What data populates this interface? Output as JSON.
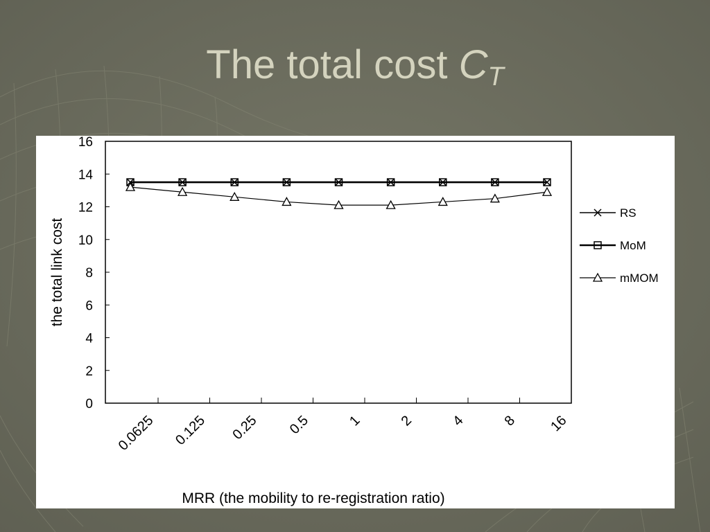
{
  "slide": {
    "title_main": "The total cost ",
    "title_var": "C",
    "title_sub": "T"
  },
  "colors": {
    "background": "#6f7061",
    "title": "#d4d3be",
    "panel": "#ffffff",
    "series": "#000000"
  },
  "chart_data": {
    "type": "line",
    "xlabel": "MRR (the mobility to re-registration ratio)",
    "ylabel": "the total link cost",
    "categories": [
      "0.0625",
      "0.125",
      "0.25",
      "0.5",
      "1",
      "2",
      "4",
      "8",
      "16"
    ],
    "ylim": [
      0,
      16
    ],
    "yticks": [
      0,
      2,
      4,
      6,
      8,
      10,
      12,
      14,
      16
    ],
    "grid": false,
    "legend_position": "right",
    "series": [
      {
        "name": "RS",
        "marker": "x",
        "values": [
          13.5,
          13.5,
          13.5,
          13.5,
          13.5,
          13.5,
          13.5,
          13.5,
          13.5
        ]
      },
      {
        "name": "MoM",
        "marker": "square",
        "values": [
          13.5,
          13.5,
          13.5,
          13.5,
          13.5,
          13.5,
          13.5,
          13.5,
          13.5
        ]
      },
      {
        "name": "mMOM",
        "marker": "triangle",
        "values": [
          13.2,
          12.9,
          12.6,
          12.3,
          12.1,
          12.1,
          12.3,
          12.5,
          12.9
        ]
      }
    ]
  }
}
